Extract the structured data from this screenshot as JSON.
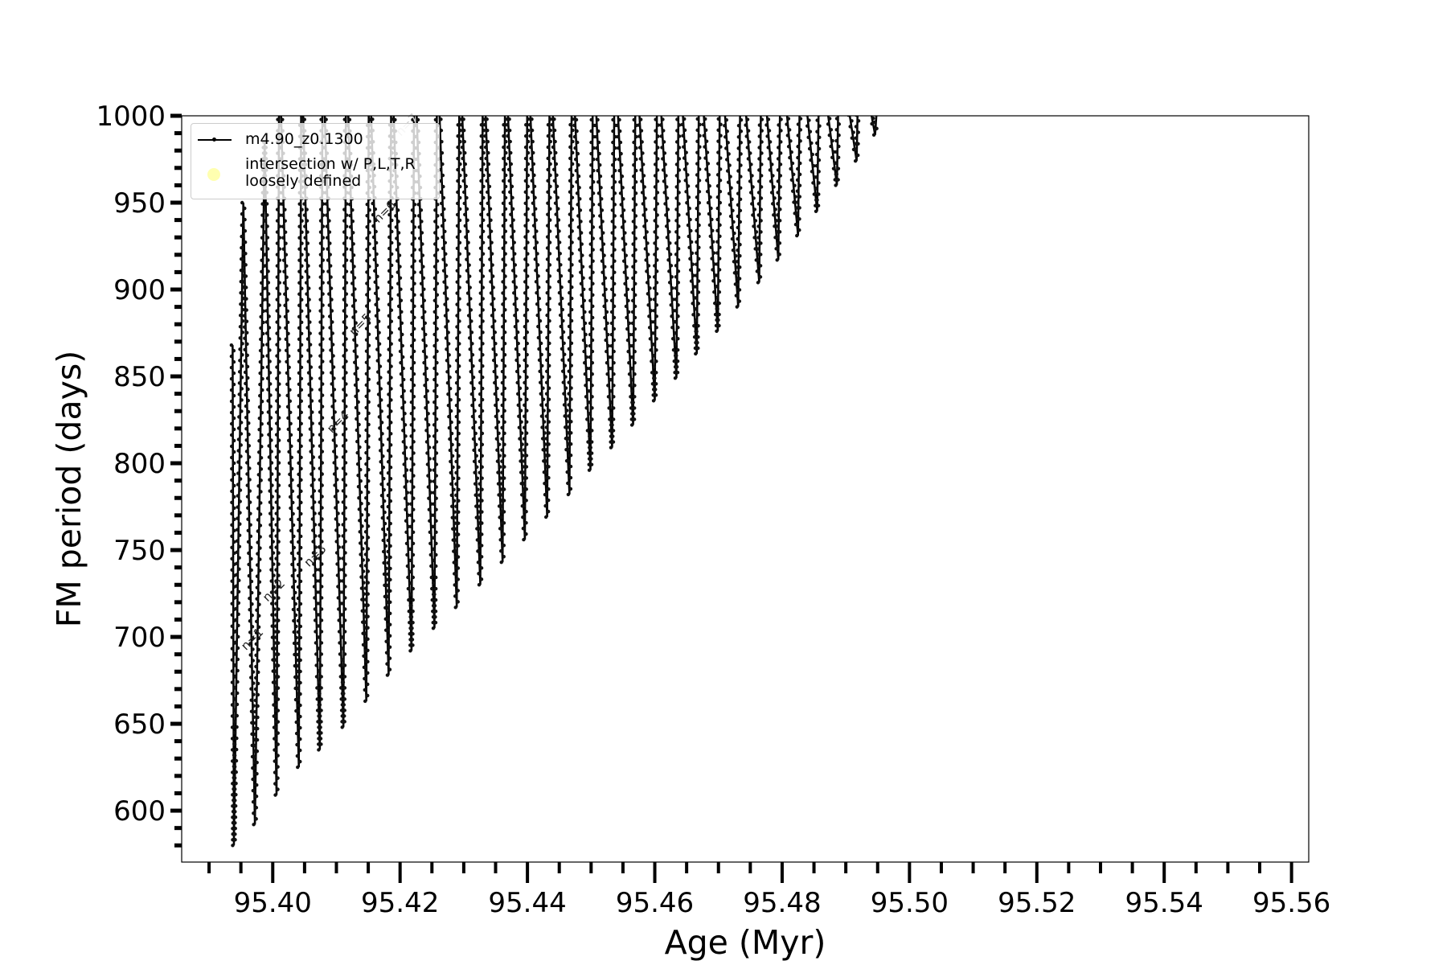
{
  "chart_data": {
    "type": "line",
    "title": "",
    "xlabel": "Age (Myr)",
    "ylabel": "FM period (days)",
    "xlim": [
      95.3857,
      95.5627
    ],
    "ylim": [
      570.4,
      1000
    ],
    "xticks": [
      "95.40",
      "95.42",
      "95.44",
      "95.46",
      "95.48",
      "95.50",
      "95.52",
      "95.54",
      "95.56"
    ],
    "yticks": [
      "600",
      "650",
      "700",
      "750",
      "800",
      "850",
      "900",
      "950",
      "1000"
    ],
    "grid": false,
    "legend_placement": "upper-left",
    "series": [
      {
        "name": "m4.90_z0.1300",
        "color": "#000000",
        "marker": "dot",
        "start": {
          "age": 95.3937,
          "period": 868
        },
        "pulse_minima": [
          {
            "age": 95.3939,
            "period": 580
          },
          {
            "age": 95.3972,
            "period": 592
          },
          {
            "age": 95.4006,
            "period": 609
          },
          {
            "age": 95.4041,
            "period": 625
          },
          {
            "age": 95.4074,
            "period": 635
          },
          {
            "age": 95.4111,
            "period": 648
          },
          {
            "age": 95.4147,
            "period": 663
          },
          {
            "age": 95.4182,
            "period": 678
          },
          {
            "age": 95.4218,
            "period": 692
          },
          {
            "age": 95.4254,
            "period": 705
          },
          {
            "age": 95.4289,
            "period": 717
          },
          {
            "age": 95.4326,
            "period": 730
          },
          {
            "age": 95.4361,
            "period": 743
          },
          {
            "age": 95.4396,
            "period": 756
          },
          {
            "age": 95.4431,
            "period": 769
          },
          {
            "age": 95.4466,
            "period": 782
          },
          {
            "age": 95.4499,
            "period": 796
          },
          {
            "age": 95.4533,
            "period": 809
          },
          {
            "age": 95.4566,
            "period": 822
          },
          {
            "age": 95.46,
            "period": 836
          },
          {
            "age": 95.4634,
            "period": 849
          },
          {
            "age": 95.4666,
            "period": 863
          },
          {
            "age": 95.4699,
            "period": 876
          },
          {
            "age": 95.4731,
            "period": 890
          },
          {
            "age": 95.4764,
            "period": 904
          },
          {
            "age": 95.4794,
            "period": 917
          },
          {
            "age": 95.4825,
            "period": 931
          },
          {
            "age": 95.4855,
            "period": 945
          },
          {
            "age": 95.4886,
            "period": 960
          },
          {
            "age": 95.4917,
            "period": 974
          },
          {
            "age": 95.4946,
            "period": 989
          }
        ],
        "pulse_peaks": [
          950,
          985
        ]
      },
      {
        "name": "intersection w/ P,L,T,R loosely defined",
        "color": "#ffffb0",
        "marker": "circle",
        "points": []
      }
    ],
    "annotations": [
      {
        "text": "n=1",
        "age": 95.3958,
        "period": 692
      },
      {
        "text": "n=2",
        "age": 95.3992,
        "period": 720
      },
      {
        "text": "n=3",
        "age": 95.4057,
        "period": 740
      },
      {
        "text": "n=4",
        "age": 95.4093,
        "period": 817
      },
      {
        "text": "n=5",
        "age": 95.4128,
        "period": 873
      },
      {
        "text": "n=6",
        "age": 95.4166,
        "period": 938
      },
      {
        "text": "n=7",
        "age": 95.4201,
        "period": 988
      }
    ]
  },
  "legend": {
    "entry1": "m4.90_z0.1300",
    "entry2": "intersection w/ P,L,T,R loosely defined"
  }
}
